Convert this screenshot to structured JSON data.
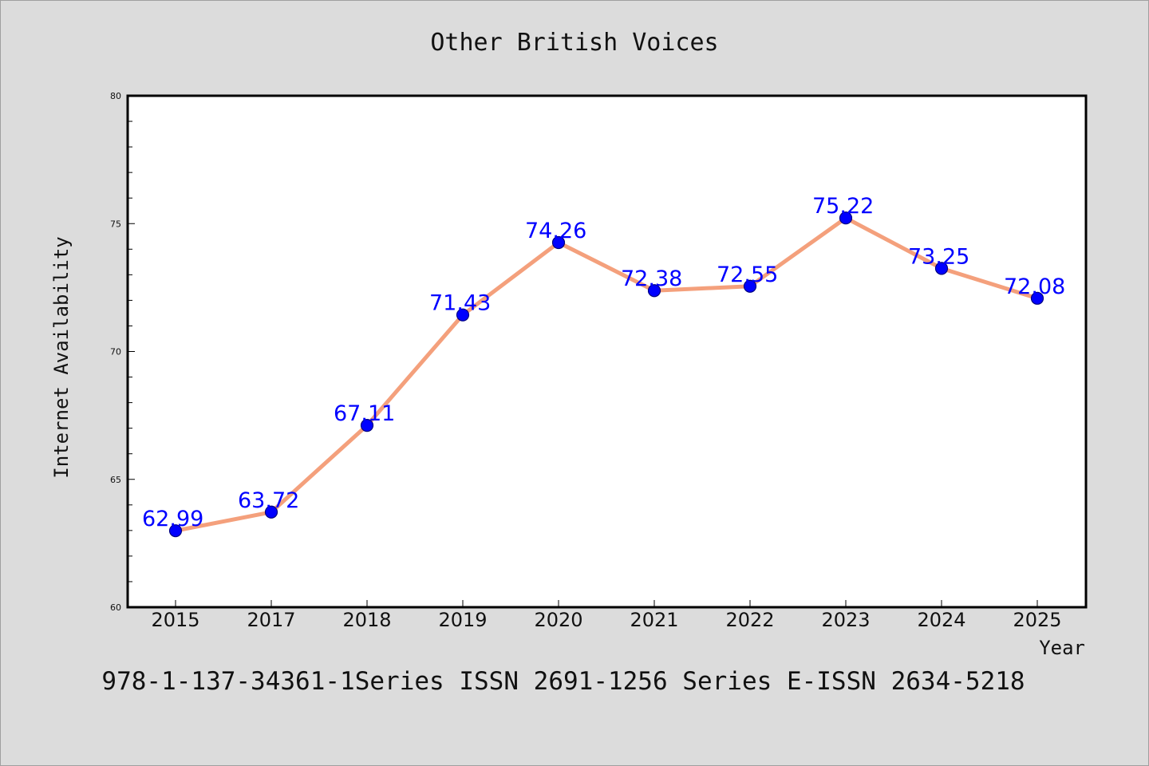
{
  "chart_data": {
    "type": "line",
    "title": "Other British Voices",
    "xlabel": "Year",
    "ylabel": "Internet Availability",
    "categories": [
      "2015",
      "2017",
      "2018",
      "2019",
      "2020",
      "2021",
      "2022",
      "2023",
      "2024",
      "2025"
    ],
    "series": [
      {
        "values": [
          62.99,
          63.72,
          67.11,
          71.43,
          74.26,
          72.38,
          72.55,
          75.22,
          73.25,
          72.08
        ]
      }
    ],
    "data_labels": [
      "62.99",
      "63.72",
      "67.11",
      "71.43",
      "74.26",
      "72.38",
      "72.55",
      "75.22",
      "73.25",
      "72.08"
    ],
    "ylim": [
      60,
      80
    ],
    "yticks": [
      "60",
      "65",
      "70",
      "75",
      "80"
    ],
    "grid": false,
    "legend": "none",
    "colors": {
      "line": "#f4a07c",
      "marker": "#0000ff",
      "marker_edge": "#000080",
      "label": "#0000ff",
      "plot_background": "#ffffff",
      "page_background": "#dcdcdc"
    }
  },
  "caption": "978-1-137-34361-1Series ISSN 2691-1256 Series E-ISSN 2634-5218"
}
